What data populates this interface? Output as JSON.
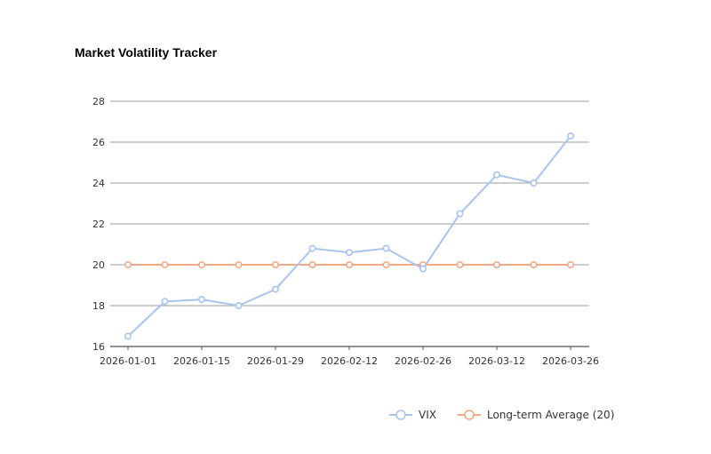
{
  "chart_data": {
    "type": "line",
    "title": "Market Volatility Tracker",
    "xlabel": "",
    "ylabel": "",
    "x": [
      "2026-01-01",
      "2026-01-08",
      "2026-01-15",
      "2026-01-22",
      "2026-01-29",
      "2026-02-05",
      "2026-02-12",
      "2026-02-19",
      "2026-02-26",
      "2026-03-05",
      "2026-03-12",
      "2026-03-19",
      "2026-03-26"
    ],
    "x_tick_labels": [
      "2026-01-01",
      "2026-01-15",
      "2026-01-29",
      "2026-02-12",
      "2026-02-26",
      "2026-03-12",
      "2026-03-26"
    ],
    "ylim": [
      16,
      28
    ],
    "y_ticks": [
      "16",
      "18",
      "20",
      "22",
      "24",
      "26",
      "28"
    ],
    "grid": "horizontal",
    "legend_position": "bottom-right",
    "series": [
      {
        "name": "VIX",
        "color": "#a9c4ef",
        "values": [
          16.5,
          18.2,
          18.3,
          18.0,
          18.8,
          20.8,
          20.6,
          20.8,
          19.8,
          22.5,
          24.4,
          24.0,
          26.3
        ]
      },
      {
        "name": "Long-term Average (20)",
        "color": "#f2a98a",
        "values": [
          20,
          20,
          20,
          20,
          20,
          20,
          20,
          20,
          20,
          20,
          20,
          20,
          20
        ]
      }
    ]
  }
}
